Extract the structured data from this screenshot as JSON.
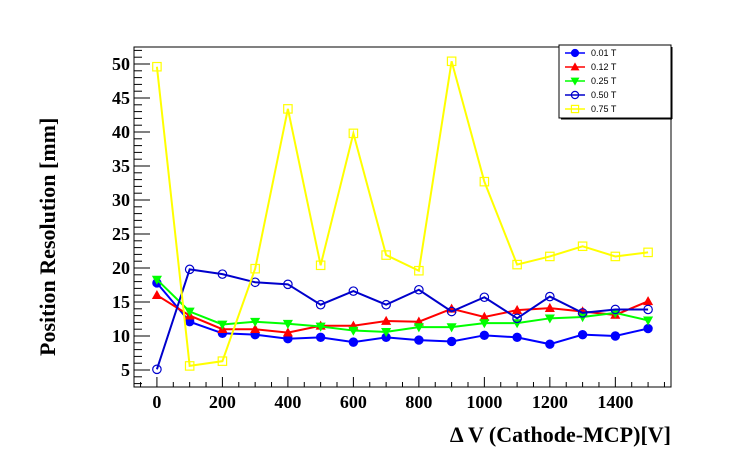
{
  "chart_data": {
    "type": "line",
    "xlabel": "Δ V (Cathode-MCP)[V]",
    "ylabel": "Position Resolution [mm]",
    "xlim": [
      -70,
      1570
    ],
    "ylim": [
      2.5,
      52.5
    ],
    "xticks": [
      0,
      200,
      400,
      600,
      800,
      1000,
      1200,
      1400
    ],
    "yticks": [
      5,
      10,
      15,
      20,
      25,
      30,
      35,
      40,
      45,
      50
    ],
    "x": [
      0,
      100,
      200,
      300,
      400,
      500,
      600,
      700,
      800,
      900,
      1000,
      1100,
      1200,
      1300,
      1400,
      1500
    ],
    "grid": false,
    "legend_position": "top-right",
    "series": [
      {
        "name": "0.01 T",
        "color": "#0000ff",
        "marker": "filled-circle",
        "values": [
          17.8,
          12.1,
          10.4,
          10.2,
          9.6,
          9.8,
          9.1,
          9.8,
          9.4,
          9.2,
          10.1,
          9.8,
          8.8,
          10.2,
          10.0,
          11.1
        ]
      },
      {
        "name": "0.12 T",
        "color": "#ff0000",
        "marker": "filled-triangle-up",
        "values": [
          16.0,
          13.0,
          11.0,
          11.0,
          10.5,
          11.5,
          11.5,
          12.2,
          12.1,
          14.0,
          12.8,
          13.8,
          14.1,
          13.6,
          13.1,
          15.1
        ]
      },
      {
        "name": "0.25 T",
        "color": "#00ff00",
        "marker": "filled-triangle-down",
        "values": [
          18.3,
          13.6,
          11.7,
          12.1,
          11.8,
          11.4,
          10.8,
          10.6,
          11.3,
          11.3,
          11.9,
          11.9,
          12.6,
          12.8,
          13.4,
          12.3
        ]
      },
      {
        "name": "0.50 T",
        "color": "#0000cc",
        "marker": "open-circle",
        "values": [
          5.1,
          19.8,
          19.1,
          17.9,
          17.6,
          14.6,
          16.6,
          14.6,
          16.8,
          13.6,
          15.7,
          12.6,
          15.8,
          13.4,
          13.9,
          13.9
        ]
      },
      {
        "name": "0.75 T",
        "color": "#ffff00",
        "marker": "open-square",
        "values": [
          49.6,
          5.6,
          6.3,
          19.9,
          43.4,
          20.4,
          39.8,
          21.9,
          19.6,
          50.4,
          32.7,
          20.5,
          21.7,
          23.2,
          21.7,
          22.3
        ]
      }
    ]
  }
}
